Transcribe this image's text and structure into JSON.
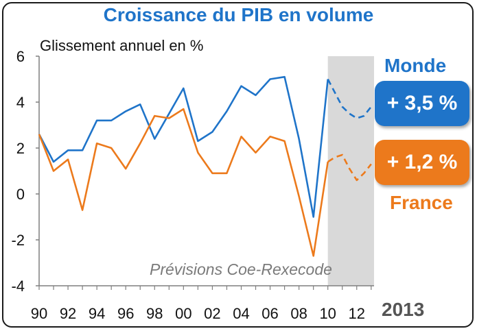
{
  "title": "Croissance du PIB en volume",
  "subtitle": "Glissement annuel en %",
  "forecast_note": "Prévisions Coe-Rexecode",
  "forecast_year": "2013",
  "badges": {
    "monde": {
      "name": "Monde",
      "value": "+ 3,5 %",
      "color": "#1f74c9"
    },
    "france": {
      "name": "France",
      "value": "+ 1,2 %",
      "color": "#ec7a1c"
    }
  },
  "chart_data": {
    "type": "line",
    "title": "Croissance du PIB en volume",
    "ylabel": "Glissement annuel en %",
    "ylim": [
      -4,
      6
    ],
    "yticks": [
      -4,
      -2,
      0,
      2,
      4,
      6
    ],
    "xlim": [
      1990,
      2013.2
    ],
    "xticks": [
      1990,
      1992,
      1994,
      1996,
      1998,
      2000,
      2002,
      2004,
      2006,
      2008,
      2010,
      2012
    ],
    "xtick_labels": [
      "90",
      "92",
      "94",
      "96",
      "98",
      "00",
      "02",
      "04",
      "06",
      "08",
      "10",
      "12"
    ],
    "forecast_start": 2010,
    "series": [
      {
        "name": "Monde",
        "color": "#1f74c9",
        "x": [
          1990,
          1991,
          1992,
          1993,
          1994,
          1995,
          1996,
          1997,
          1998,
          1999,
          2000,
          2001,
          2002,
          2003,
          2004,
          2005,
          2006,
          2007,
          2008,
          2009,
          2010,
          2010.5,
          2011,
          2011.5,
          2012,
          2012.5,
          2013
        ],
        "values": [
          2.6,
          1.4,
          1.9,
          1.9,
          3.2,
          3.2,
          3.6,
          3.9,
          2.4,
          3.5,
          4.6,
          2.3,
          2.7,
          3.6,
          4.7,
          4.3,
          5.0,
          5.1,
          2.4,
          -1.0,
          5.0,
          4.4,
          3.8,
          3.5,
          3.3,
          3.4,
          3.8
        ]
      },
      {
        "name": "France",
        "color": "#ec7a1c",
        "x": [
          1990,
          1991,
          1992,
          1993,
          1994,
          1995,
          1996,
          1997,
          1998,
          1999,
          2000,
          2001,
          2002,
          2003,
          2004,
          2005,
          2006,
          2007,
          2008,
          2009,
          2010,
          2010.5,
          2011,
          2011.5,
          2012,
          2012.5,
          2013
        ],
        "values": [
          2.6,
          1.0,
          1.5,
          -0.7,
          2.2,
          2.0,
          1.1,
          2.2,
          3.4,
          3.3,
          3.7,
          1.8,
          0.9,
          0.9,
          2.5,
          1.8,
          2.5,
          2.3,
          -0.1,
          -2.7,
          1.4,
          1.6,
          1.7,
          1.1,
          0.6,
          0.9,
          1.3
        ]
      }
    ]
  }
}
